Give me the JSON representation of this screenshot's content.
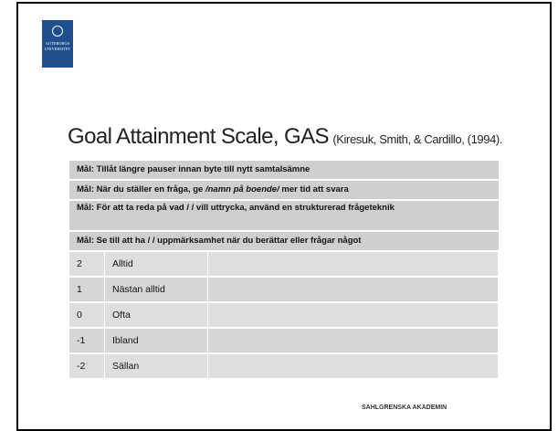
{
  "logo": {
    "line1": "GÖTEBORGS",
    "line2": "UNIVERSITET"
  },
  "title": "Goal Attainment Scale, GAS",
  "citation": "(Kiresuk, Smith, & Cardillo, (1994).",
  "goal_1": "Mål: Tillåt längre pauser innan byte till nytt samtalsämne",
  "goal_2": {
    "before": "Mål: När du ställer en fråga, ge ",
    "italic": "/namn på boende/",
    "after": " mer tid att svara"
  },
  "goal_3": "Mål: För att ta reda på vad / / vill uttrycka, använd en strukturerad frågeteknik",
  "goal_4": "Mål: Se till att ha / / uppmärksamhet när du berättar eller frågar något",
  "scale": [
    {
      "score": 2,
      "label": "Alltid"
    },
    {
      "score": 1,
      "label": "Nästan alltid"
    },
    {
      "score": 0,
      "label": "Ofta"
    },
    {
      "score": -1,
      "label": "Ibland"
    },
    {
      "score": -2,
      "label": "Sällan"
    }
  ],
  "footer": "SAHLGRENSKA AKADEMIN"
}
